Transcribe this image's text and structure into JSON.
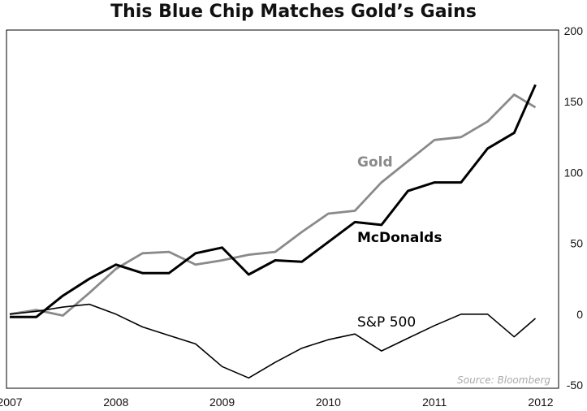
{
  "chart_data": {
    "type": "line",
    "title": "This Blue Chip Matches Gold’s Gains",
    "source": "Source: Bloomberg",
    "xlabel": "",
    "ylabel": "",
    "xlim": [
      2007,
      2012
    ],
    "ylim": [
      -50,
      200
    ],
    "x_ticks": [
      "2007",
      "2008",
      "2009",
      "2010",
      "2011",
      "2012"
    ],
    "y_ticks": [
      "200",
      "150",
      "100",
      "50",
      "0",
      "-50"
    ],
    "y_axis_side": "right",
    "grid": false,
    "colors": {
      "Gold": "#8a8a8a",
      "McDonalds": "#000000",
      "S&P 500": "#000000"
    },
    "series": [
      {
        "name": "Gold",
        "points": [
          [
            2007.0,
            0
          ],
          [
            2007.25,
            3
          ],
          [
            2007.5,
            -1
          ],
          [
            2007.75,
            15
          ],
          [
            2008.0,
            32
          ],
          [
            2008.25,
            43
          ],
          [
            2008.5,
            44
          ],
          [
            2008.75,
            35
          ],
          [
            2009.0,
            38
          ],
          [
            2009.25,
            42
          ],
          [
            2009.5,
            44
          ],
          [
            2009.75,
            58
          ],
          [
            2010.0,
            71
          ],
          [
            2010.25,
            73
          ],
          [
            2010.5,
            93
          ],
          [
            2010.75,
            108
          ],
          [
            2011.0,
            123
          ],
          [
            2011.25,
            125
          ],
          [
            2011.5,
            136
          ],
          [
            2011.75,
            155
          ],
          [
            2011.95,
            146
          ]
        ]
      },
      {
        "name": "McDonalds",
        "points": [
          [
            2007.0,
            -2
          ],
          [
            2007.25,
            -2
          ],
          [
            2007.5,
            13
          ],
          [
            2007.75,
            25
          ],
          [
            2008.0,
            35
          ],
          [
            2008.25,
            29
          ],
          [
            2008.5,
            29
          ],
          [
            2008.75,
            43
          ],
          [
            2009.0,
            47
          ],
          [
            2009.25,
            28
          ],
          [
            2009.5,
            38
          ],
          [
            2009.75,
            37
          ],
          [
            2010.0,
            51
          ],
          [
            2010.25,
            65
          ],
          [
            2010.5,
            63
          ],
          [
            2010.75,
            87
          ],
          [
            2011.0,
            93
          ],
          [
            2011.25,
            93
          ],
          [
            2011.5,
            117
          ],
          [
            2011.75,
            128
          ],
          [
            2011.95,
            162
          ]
        ]
      },
      {
        "name": "S&P 500",
        "points": [
          [
            2007.0,
            0
          ],
          [
            2007.25,
            2
          ],
          [
            2007.5,
            5
          ],
          [
            2007.75,
            7
          ],
          [
            2008.0,
            0
          ],
          [
            2008.25,
            -9
          ],
          [
            2008.5,
            -15
          ],
          [
            2008.75,
            -21
          ],
          [
            2009.0,
            -37
          ],
          [
            2009.25,
            -45
          ],
          [
            2009.5,
            -34
          ],
          [
            2009.75,
            -24
          ],
          [
            2010.0,
            -18
          ],
          [
            2010.25,
            -14
          ],
          [
            2010.5,
            -26
          ],
          [
            2010.75,
            -17
          ],
          [
            2011.0,
            -8
          ],
          [
            2011.25,
            0
          ],
          [
            2011.5,
            0
          ],
          [
            2011.75,
            -16
          ],
          [
            2011.95,
            -3
          ]
        ]
      }
    ]
  }
}
